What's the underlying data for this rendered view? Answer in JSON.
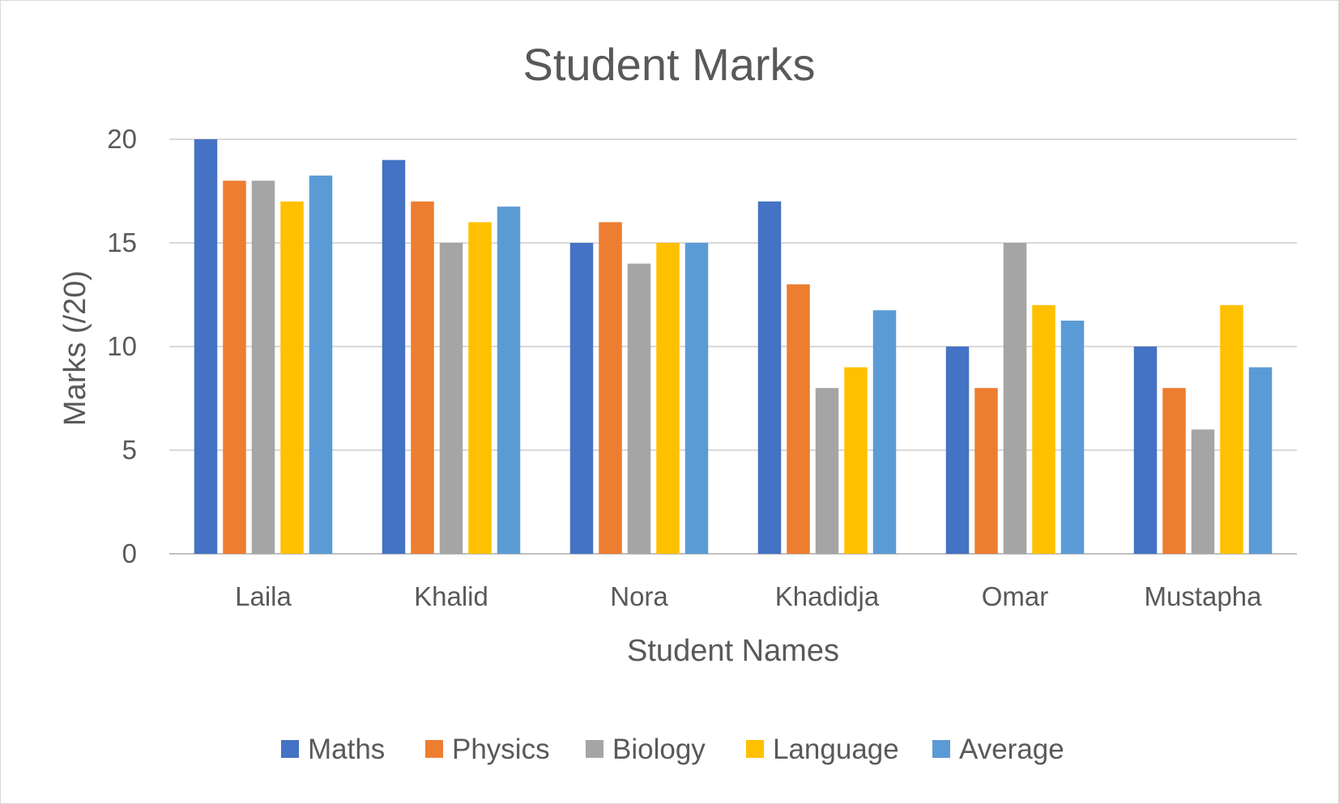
{
  "chart_data": {
    "type": "bar",
    "title": "Student Marks",
    "xlabel": "Student Names",
    "ylabel": "Marks (/20)",
    "ylim": [
      0,
      20
    ],
    "yticks": [
      0,
      5,
      10,
      15,
      20
    ],
    "grid": true,
    "legend_position": "bottom",
    "categories": [
      "Laila",
      "Khalid",
      "Nora",
      "Khadidja",
      "Omar",
      "Mustapha"
    ],
    "series": [
      {
        "name": "Maths",
        "color": "#4472C4",
        "values": [
          20,
          19,
          15,
          17,
          10,
          10
        ]
      },
      {
        "name": "Physics",
        "color": "#ED7D31",
        "values": [
          18,
          17,
          16,
          13,
          8,
          8
        ]
      },
      {
        "name": "Biology",
        "color": "#A5A5A5",
        "values": [
          18,
          15,
          14,
          8,
          15,
          6
        ]
      },
      {
        "name": "Language",
        "color": "#FFC000",
        "values": [
          17,
          16,
          15,
          9,
          12,
          12
        ]
      },
      {
        "name": "Average",
        "color": "#5B9BD5",
        "values": [
          18.25,
          16.75,
          15,
          11.75,
          11.25,
          9
        ]
      }
    ]
  }
}
